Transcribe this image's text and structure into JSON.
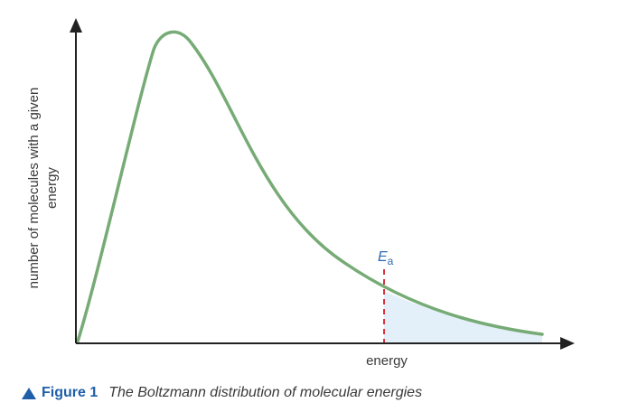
{
  "chart_data": {
    "type": "line",
    "title": "",
    "xlabel": "energy",
    "ylabel_line1": "number of molecules with a given",
    "ylabel_line2": "energy",
    "activation_energy": {
      "label": "E",
      "subscript": "a"
    },
    "series": [
      {
        "values_description": "",
        "color": "#76ab76"
      }
    ],
    "area_color": "#e4f0f9",
    "marker_color": "#d9333f",
    "axis_color": "#222222",
    "grid": false,
    "ticks": false
  },
  "caption": {
    "figure_number": "Figure 1",
    "text": "The Boltzmann distribution of molecular energies",
    "icon": "triangle-up-icon",
    "accent_color": "#1f5fa8"
  }
}
